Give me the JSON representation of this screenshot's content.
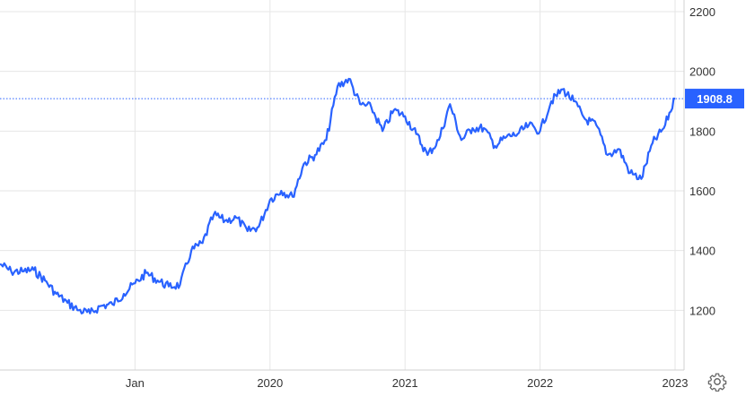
{
  "chart_data": {
    "type": "line",
    "title": "",
    "xlabel": "",
    "ylabel": "",
    "ylim": [
      1000,
      2200
    ],
    "y_ticks": [
      1200,
      1400,
      1600,
      1800,
      2000,
      2200
    ],
    "x_ticks": [
      {
        "label": "Jan",
        "x": "2019-01"
      },
      {
        "label": "2020",
        "x": "2020-01"
      },
      {
        "label": "2021",
        "x": "2021-01"
      },
      {
        "label": "2022",
        "x": "2022-01"
      },
      {
        "label": "2023",
        "x": "2023-01"
      }
    ],
    "grid": true,
    "series": [
      {
        "color": "#2962ff",
        "x": [
          "2018-01",
          "2018-02",
          "2018-03",
          "2018-04",
          "2018-05",
          "2018-06",
          "2018-07",
          "2018-08",
          "2018-09",
          "2018-10",
          "2018-11",
          "2018-12",
          "2019-01",
          "2019-02",
          "2019-03",
          "2019-04",
          "2019-05",
          "2019-06",
          "2019-07",
          "2019-08",
          "2019-09",
          "2019-10",
          "2019-11",
          "2019-12",
          "2020-01",
          "2020-02",
          "2020-03",
          "2020-04",
          "2020-05",
          "2020-06",
          "2020-07",
          "2020-08",
          "2020-09",
          "2020-10",
          "2020-11",
          "2020-12",
          "2021-01",
          "2021-02",
          "2021-03",
          "2021-04",
          "2021-05",
          "2021-06",
          "2021-07",
          "2021-08",
          "2021-09",
          "2021-10",
          "2021-11",
          "2021-12",
          "2022-01",
          "2022-02",
          "2022-03",
          "2022-04",
          "2022-05",
          "2022-06",
          "2022-07",
          "2022-08",
          "2022-09",
          "2022-10",
          "2022-11",
          "2022-12",
          "2023-01"
        ],
        "values": [
          1355,
          1330,
          1330,
          1335,
          1300,
          1255,
          1225,
          1200,
          1190,
          1215,
          1220,
          1255,
          1290,
          1325,
          1300,
          1280,
          1285,
          1400,
          1425,
          1520,
          1500,
          1510,
          1465,
          1480,
          1570,
          1600,
          1580,
          1690,
          1720,
          1770,
          1950,
          1975,
          1890,
          1880,
          1800,
          1870,
          1850,
          1790,
          1720,
          1770,
          1890,
          1770,
          1810,
          1810,
          1750,
          1780,
          1790,
          1820,
          1800,
          1900,
          1940,
          1900,
          1840,
          1820,
          1720,
          1740,
          1660,
          1640,
          1760,
          1810,
          1908.8
        ]
      }
    ],
    "last_value_label": "1908.8"
  },
  "settings_icon": "gear-icon",
  "colors": {
    "line": "#2962ff",
    "grid": "#e6e6e6",
    "badge": "#2962ff",
    "dotted": "#2962ff"
  }
}
